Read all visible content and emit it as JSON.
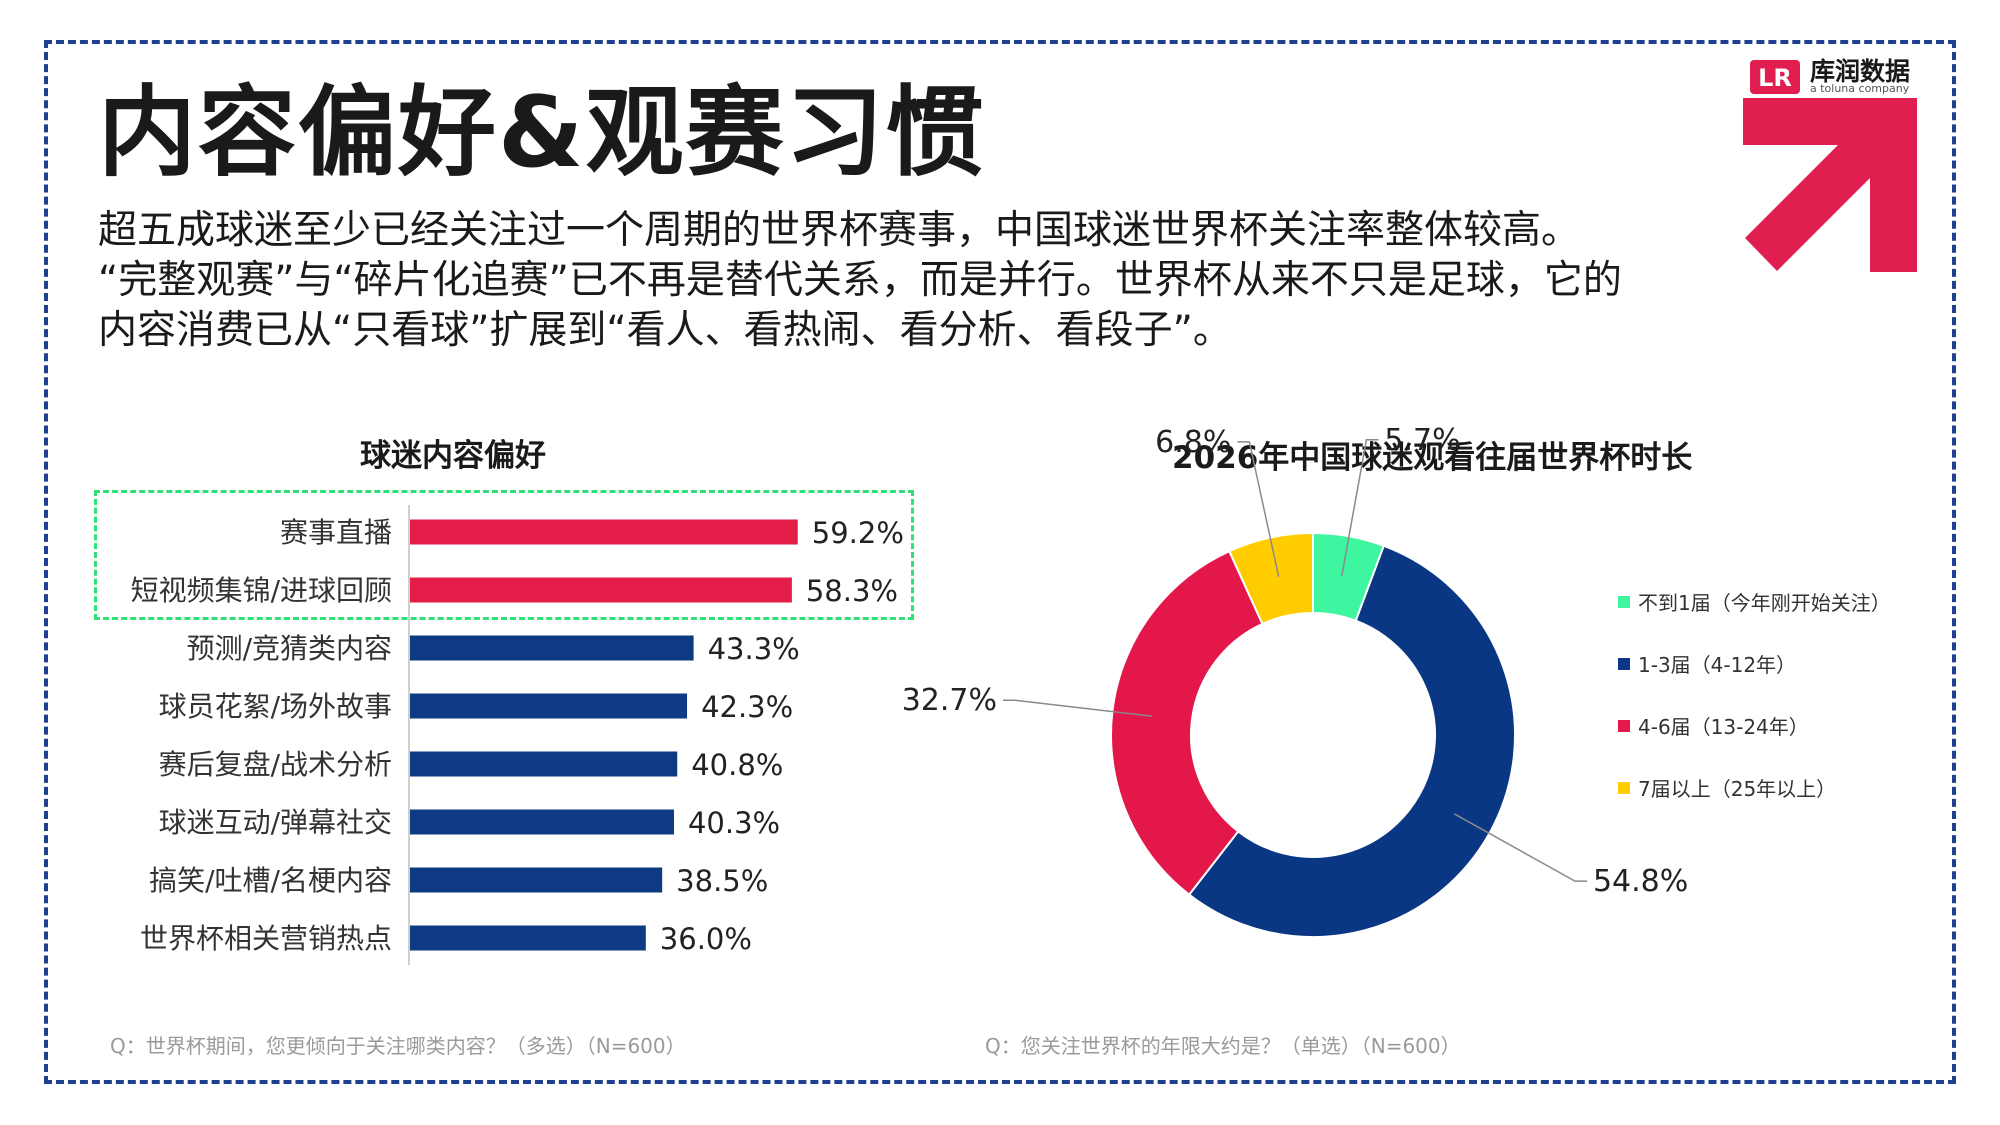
{
  "page": {
    "title": "内容偏好&观赛习惯",
    "intro_lines": [
      "超五成球迷至少已经关注过一个周期的世界杯赛事，中国球迷世界杯关注率整体较高。",
      "“完整观赛”与“碎片化追赛”已不再是替代关系，而是并行。世界杯从来不只是足球，它的",
      "内容消费已从“只看球”扩展到“看人、看热闹、看分析、看段子”。"
    ],
    "logo": {
      "name": "库润数据",
      "sub": "a toluna company",
      "mark_color": "#e01e4f"
    },
    "accent_color": "#e01e4f",
    "frame_color": "#1f3f8f",
    "footnotes": {
      "left": "Q：世界杯期间，您更倾向于关注哪类内容？（多选）（N=600）",
      "right": "Q：您关注世界杯的年限大约是？（单选）（N=600）"
    }
  },
  "chart_data": [
    {
      "type": "bar",
      "orientation": "horizontal",
      "title": "球迷内容偏好",
      "categories": [
        "赛事直播",
        "短视频集锦/进球回顾",
        "预测/竞猜类内容",
        "球员花絮/场外故事",
        "赛后复盘/战术分析",
        "球迷互动/弹幕社交",
        "搞笑/吐槽/名梗内容",
        "世界杯相关营销热点"
      ],
      "values": [
        59.2,
        58.3,
        43.3,
        42.3,
        40.8,
        40.3,
        38.5,
        36.0
      ],
      "value_labels": [
        "59.2%",
        "58.3%",
        "43.3%",
        "42.3%",
        "40.8%",
        "40.3%",
        "38.5%",
        "36.0%"
      ],
      "highlighted": [
        true,
        true,
        false,
        false,
        false,
        false,
        false,
        false
      ],
      "colors": {
        "highlight": "#e31d48",
        "default": "#0d3a82"
      },
      "xlim": [
        0,
        100
      ],
      "grid": false
    },
    {
      "type": "pie",
      "style": "donut",
      "title": "2026年中国球迷观看往届世界杯时长",
      "slices": [
        {
          "label": "不到1届（今年刚开始关注）",
          "value": 5.7,
          "value_label": "5.7%",
          "color": "#3ef5a0"
        },
        {
          "label": "1-3届（4-12年）",
          "value": 54.8,
          "value_label": "54.8%",
          "color": "#0a3784"
        },
        {
          "label": "4-6届（13-24年）",
          "value": 32.7,
          "value_label": "32.7%",
          "color": "#e3174a"
        },
        {
          "label": "7届以上（25年以上）",
          "value": 6.8,
          "value_label": "6.8%",
          "color": "#ffcc00"
        }
      ],
      "legend_position": "right"
    }
  ]
}
